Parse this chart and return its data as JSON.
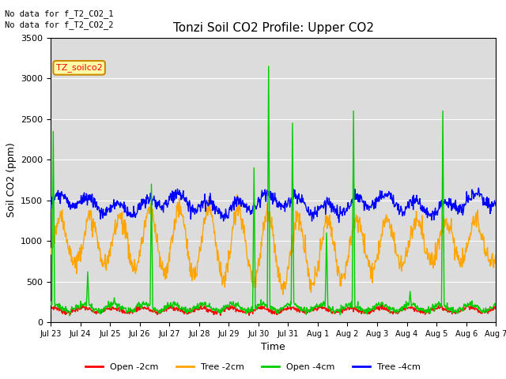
{
  "title": "Tonzi Soil CO2 Profile: Upper CO2",
  "ylabel": "Soil CO2 (ppm)",
  "xlabel": "Time",
  "annotation1": "No data for f_T2_CO2_1",
  "annotation2": "No data for f_T2_CO2_2",
  "legend_label": "TZ_soilco2",
  "ylim": [
    0,
    3500
  ],
  "series_labels": [
    "Open -2cm",
    "Tree -2cm",
    "Open -4cm",
    "Tree -4cm"
  ],
  "series_colors": [
    "#ff0000",
    "#ffa500",
    "#00cc00",
    "#0000ff"
  ],
  "background_color": "#ffffff",
  "plot_bg_color": "#dcdcdc",
  "tick_labels": [
    "Jul 23",
    "Jul 24",
    "Jul 25",
    "Jul 26",
    "Jul 27",
    "Jul 28",
    "Jul 29",
    "Jul 30",
    "Jul 31",
    "Aug 1",
    "Aug 2",
    "Aug 3",
    "Aug 4",
    "Aug 5",
    "Aug 6",
    "Aug 7"
  ],
  "n_points": 1008,
  "seed": 7
}
